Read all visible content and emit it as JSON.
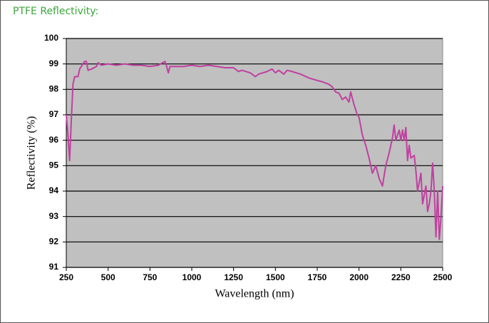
{
  "heading": "PTFE Reflectivity:",
  "chart_data": {
    "type": "line",
    "xlabel": "Wavelength (nm)",
    "ylabel": "Reflectivity (%)",
    "xlim": [
      250,
      2500
    ],
    "xticks": [
      250,
      500,
      750,
      1000,
      1250,
      1500,
      1750,
      2000,
      2250,
      2500
    ],
    "ylim": [
      91,
      100
    ],
    "yticks": [
      91,
      92,
      93,
      94,
      95,
      96,
      97,
      98,
      99,
      100
    ],
    "grid": true,
    "background": "#c0c0c0",
    "series": [
      {
        "color": "#c040a0",
        "x": [
          250,
          260,
          270,
          280,
          290,
          300,
          320,
          330,
          350,
          360,
          370,
          380,
          400,
          430,
          440,
          460,
          500,
          550,
          600,
          650,
          700,
          750,
          800,
          840,
          850,
          860,
          870,
          900,
          950,
          1000,
          1050,
          1100,
          1150,
          1200,
          1250,
          1280,
          1300,
          1350,
          1380,
          1400,
          1450,
          1480,
          1500,
          1520,
          1550,
          1570,
          1600,
          1650,
          1700,
          1750,
          1780,
          1800,
          1820,
          1840,
          1860,
          1880,
          1900,
          1920,
          1940,
          1950,
          1970,
          1990,
          2000,
          2020,
          2040,
          2060,
          2080,
          2100,
          2120,
          2140,
          2160,
          2180,
          2200,
          2210,
          2220,
          2240,
          2250,
          2260,
          2270,
          2280,
          2290,
          2300,
          2310,
          2330,
          2340,
          2350,
          2370,
          2380,
          2400,
          2410,
          2420,
          2430,
          2440,
          2450,
          2460,
          2470,
          2480,
          2490,
          2500
        ],
        "values": [
          97.0,
          96.2,
          95.2,
          96.8,
          98.2,
          98.5,
          98.5,
          98.8,
          99.0,
          99.1,
          99.1,
          98.75,
          98.8,
          98.9,
          99.05,
          98.95,
          99.0,
          98.95,
          99.0,
          98.95,
          98.95,
          98.9,
          98.95,
          99.1,
          98.9,
          98.65,
          98.9,
          98.9,
          98.9,
          98.95,
          98.9,
          98.95,
          98.9,
          98.85,
          98.85,
          98.7,
          98.75,
          98.65,
          98.5,
          98.6,
          98.7,
          98.8,
          98.65,
          98.75,
          98.6,
          98.75,
          98.7,
          98.6,
          98.45,
          98.35,
          98.3,
          98.25,
          98.2,
          98.1,
          97.9,
          97.85,
          97.6,
          97.7,
          97.5,
          97.9,
          97.4,
          97.0,
          96.9,
          96.2,
          95.8,
          95.3,
          94.7,
          95.0,
          94.5,
          94.2,
          95.0,
          95.5,
          96.1,
          96.6,
          96.0,
          96.4,
          96.0,
          96.4,
          96.0,
          96.5,
          95.2,
          95.8,
          95.3,
          95.4,
          94.8,
          94.0,
          94.7,
          93.5,
          94.2,
          93.2,
          93.5,
          94.0,
          95.1,
          94.0,
          92.2,
          94.0,
          92.1,
          93.0,
          94.2
        ]
      }
    ]
  }
}
